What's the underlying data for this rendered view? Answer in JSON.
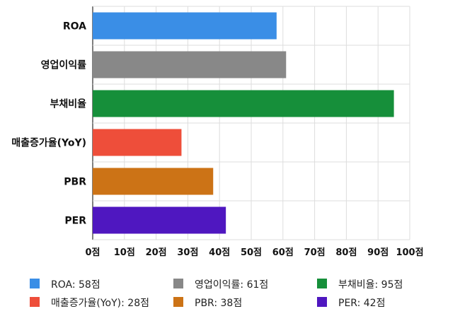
{
  "chart_data": {
    "type": "bar",
    "orientation": "horizontal",
    "categories": [
      "ROA",
      "영업이익률",
      "부채비율",
      "매출증가율(YoY)",
      "PBR",
      "PER"
    ],
    "values": [
      58,
      61,
      95,
      28,
      38,
      42
    ],
    "colors": [
      "#3a8ee6",
      "#888888",
      "#168f3a",
      "#ee4e3a",
      "#cc7316",
      "#4f17c0"
    ],
    "xlim": [
      0,
      100
    ],
    "xticks": [
      0,
      10,
      20,
      30,
      40,
      50,
      60,
      70,
      80,
      90,
      100
    ],
    "tick_suffix": "점",
    "grid": true,
    "legend": {
      "placement": "bottom",
      "items": [
        "ROA: 58점",
        "영업이익률: 61점",
        "부채비율: 95점",
        "매출증가율(YoY): 28점",
        "PBR: 38점",
        "PER: 42점"
      ]
    }
  }
}
